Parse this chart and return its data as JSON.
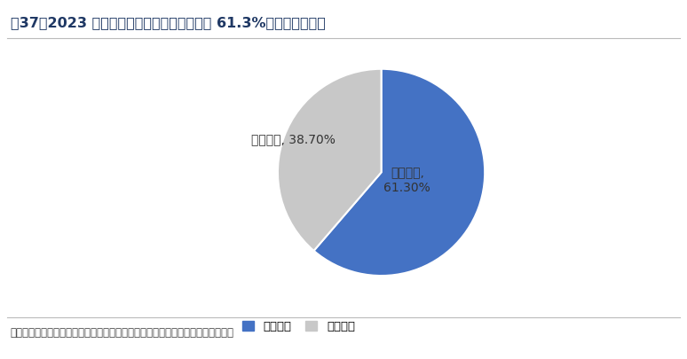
{
  "title": "图37：2023 年度液冷基础设施市场份额高达 61.3%，位列行业第一",
  "slices": [
    61.3,
    38.7
  ],
  "labels": [
    "曙光数创",
    "其他企业"
  ],
  "colors": [
    "#4472C4",
    "#C8C8C8"
  ],
  "label_inside": "曙光数创,\n61.30%",
  "label_outside": "其他企业, 38.70%",
  "legend_labels": [
    "曙光数创",
    "其他企业"
  ],
  "source_text": "数据来源：中国电子技术标准化研究院《液冷数据中心白皮书》、开源证券研究所",
  "background_color": "#FFFFFF",
  "title_color": "#1F3864",
  "label_color": "#333333",
  "source_color": "#404040"
}
